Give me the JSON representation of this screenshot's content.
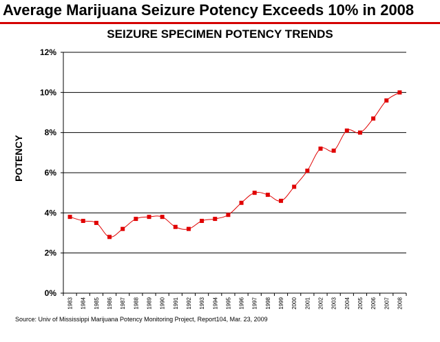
{
  "slide": {
    "title": "Average Marijuana Seizure Potency Exceeds 10% in 2008",
    "source": "Source: Univ of Mississippi Marijuana Potency Monitoring Project, Report104, Mar. 23, 2009"
  },
  "colors": {
    "rule": "#d40000",
    "series": "#e00000",
    "grid": "#000000"
  },
  "chart_data": {
    "type": "line",
    "title": "SEIZURE SPECIMEN POTENCY TRENDS",
    "xlabel": "",
    "ylabel": "POTENCY",
    "x": [
      "1983",
      "1984",
      "1985",
      "1986",
      "1987",
      "1988",
      "1989",
      "1990",
      "1991",
      "1992",
      "1993",
      "1994",
      "1995",
      "1996",
      "1997",
      "1998",
      "1999",
      "2000",
      "2001",
      "2002",
      "2003",
      "2004",
      "2005",
      "2006",
      "2007",
      "2008"
    ],
    "series": [
      {
        "values": [
          3.8,
          3.6,
          3.5,
          2.8,
          3.2,
          3.7,
          3.8,
          3.8,
          3.3,
          3.2,
          3.6,
          3.7,
          3.9,
          4.5,
          5.0,
          4.9,
          4.6,
          5.3,
          6.1,
          7.2,
          7.1,
          8.1,
          8.0,
          8.7,
          9.6,
          10.0
        ]
      }
    ],
    "ylim": [
      0,
      12
    ],
    "yticks": [
      0,
      2,
      4,
      6,
      8,
      10,
      12
    ],
    "ytick_labels": [
      "0%",
      "2%",
      "4%",
      "6%",
      "8%",
      "10%",
      "12%"
    ],
    "grid": true,
    "legend": "none"
  }
}
